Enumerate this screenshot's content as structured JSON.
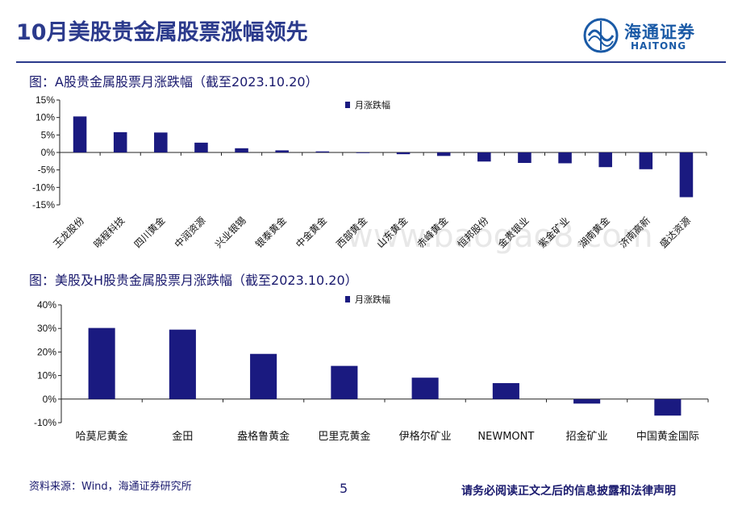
{
  "header": {
    "title": "10月美股贵金属股票涨幅领先",
    "logo_cn": "海通证券",
    "logo_en": "HAITONG"
  },
  "watermark": "www.baogao8.com",
  "footer": {
    "source": "资料来源：Wind，海通证券研究所",
    "page": "5",
    "disclaimer": "请务必阅读正文之后的信息披露和法律声明"
  },
  "colors": {
    "bar": "#1a1a80",
    "accent": "#2b3a8c"
  },
  "chart_data": [
    {
      "type": "bar",
      "title": "图：A股贵金属股票月涨跌幅（截至2023.10.20）",
      "legend": "月涨跌幅",
      "legend_position": "top",
      "categories": [
        "玉龙股份",
        "晓程科技",
        "四川黄金",
        "中润资源",
        "兴业银锡",
        "银泰黄金",
        "中金黄金",
        "西部黄金",
        "山东黄金",
        "赤峰黄金",
        "恒邦股份",
        "金贵银业",
        "紫金矿业",
        "湖南黄金",
        "济南高新",
        "盛达资源"
      ],
      "values": [
        10.3,
        5.8,
        5.7,
        2.8,
        1.2,
        0.6,
        0.3,
        -0.1,
        -0.5,
        -1.0,
        -2.6,
        -3.0,
        -3.1,
        -4.2,
        -4.8,
        -12.8
      ],
      "ylim": [
        -15,
        15
      ],
      "yticks": [
        "15%",
        "10%",
        "5%",
        "0%",
        "-5%",
        "-10%",
        "-15%"
      ],
      "grid": false
    },
    {
      "type": "bar",
      "title": "图：美股及H股贵金属股票月涨跌幅（截至2023.10.20）",
      "legend": "月涨跌幅",
      "legend_position": "top",
      "categories": [
        "哈莫尼黄金",
        "金田",
        "盎格鲁黄金",
        "巴里克黄金",
        "伊格尔矿业",
        "NEWMONT",
        "招金矿业",
        "中国黄金国际"
      ],
      "values": [
        30.2,
        29.5,
        19.2,
        14.1,
        9.1,
        6.8,
        -1.9,
        -7.0
      ],
      "ylim": [
        -10,
        40
      ],
      "yticks": [
        "40%",
        "30%",
        "20%",
        "10%",
        "0%",
        "-10%"
      ],
      "grid": false
    }
  ]
}
